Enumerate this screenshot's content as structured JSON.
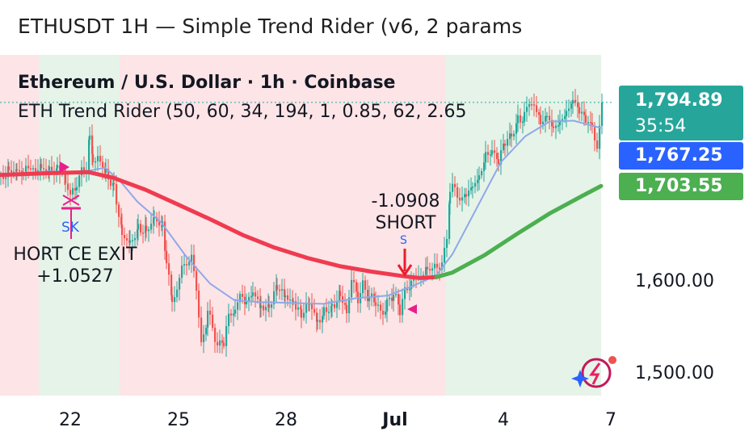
{
  "window_title": "ETHUSDT 1H — Simple Trend Rider (v6, 2 params",
  "legend": {
    "symbol_line": "Ethereum / U.S. Dollar · 1h · Coinbase",
    "indicator_line": "ETH Trend Rider (50, 60, 34, 194, 1, 0.85, 62, 2.65"
  },
  "price_tags": {
    "current_price": "1,794.89",
    "countdown": "35:54",
    "blue_line_value": "1,767.25",
    "green_line_value": "1,703.55"
  },
  "price_axis": [
    "1,600.00",
    "1,500.00"
  ],
  "date_axis": [
    "22",
    "25",
    "28",
    "Jul",
    "4",
    "7"
  ],
  "annotations": {
    "exit_label_1": "HORT CE EXIT",
    "exit_label_2": "+1.0527",
    "short_label_1": "-1.0908",
    "short_label_2": "SHORT",
    "sk_label": "SK",
    "s_label": "S"
  },
  "colors": {
    "bull_candle": "#26a69a",
    "bear_candle": "#ef5350",
    "background_bear": "#fde4e6",
    "background_bull": "#e6f3e8",
    "trend_line_bear": "#ef3b50",
    "trend_line_bull": "#4caf50",
    "fast_line": "#8fa8e8",
    "signal_magenta": "#e91e8c"
  },
  "chart_data": {
    "type": "candlestick",
    "title": "ETHUSDT 1H — Simple Trend Rider (v6, 2 params",
    "x": [
      "22",
      "25",
      "28",
      "Jul",
      "4",
      "7"
    ],
    "ylim": [
      1480,
      1860
    ],
    "y_ticks": [
      1500,
      1600
    ],
    "current_price": 1794.89,
    "overlay_values": {
      "fast_line_last": 1767.25,
      "trend_line_last": 1703.55
    },
    "series": [
      {
        "values": [
          [
            0,
            1714
          ],
          [
            10,
            1722
          ],
          [
            20,
            1716
          ],
          [
            28,
            1720
          ],
          [
            40,
            1724
          ],
          [
            50,
            1721
          ],
          [
            60,
            1718
          ],
          [
            70,
            1725
          ],
          [
            76,
            1722
          ],
          [
            80,
            1707
          ],
          [
            86,
            1693
          ],
          [
            94,
            1704
          ],
          [
            100,
            1720
          ],
          [
            106,
            1726
          ],
          [
            110,
            1760
          ],
          [
            114,
            1736
          ],
          [
            120,
            1733
          ],
          [
            130,
            1716
          ],
          [
            140,
            1706
          ],
          [
            150,
            1650
          ],
          [
            160,
            1638
          ],
          [
            170,
            1660
          ],
          [
            180,
            1656
          ],
          [
            190,
            1665
          ],
          [
            200,
            1660
          ],
          [
            205,
            1622
          ],
          [
            212,
            1575
          ],
          [
            218,
            1590
          ],
          [
            224,
            1623
          ],
          [
            230,
            1611
          ],
          [
            236,
            1634
          ],
          [
            242,
            1590
          ],
          [
            248,
            1530
          ],
          [
            256,
            1566
          ],
          [
            262,
            1553
          ],
          [
            268,
            1529
          ],
          [
            276,
            1535
          ],
          [
            282,
            1562
          ],
          [
            290,
            1566
          ],
          [
            296,
            1586
          ],
          [
            304,
            1578
          ],
          [
            312,
            1587
          ],
          [
            322,
            1572
          ],
          [
            332,
            1576
          ],
          [
            342,
            1593
          ],
          [
            352,
            1582
          ],
          [
            362,
            1581
          ],
          [
            372,
            1565
          ],
          [
            382,
            1574
          ],
          [
            392,
            1558
          ],
          [
            400,
            1566
          ],
          [
            410,
            1575
          ],
          [
            420,
            1585
          ],
          [
            428,
            1567
          ],
          [
            434,
            1603
          ],
          [
            442,
            1580
          ],
          [
            448,
            1595
          ],
          [
            456,
            1582
          ],
          [
            464,
            1578
          ],
          [
            470,
            1563
          ],
          [
            478,
            1575
          ],
          [
            486,
            1586
          ],
          [
            494,
            1570
          ],
          [
            500,
            1588
          ],
          [
            508,
            1597
          ],
          [
            514,
            1606
          ],
          [
            520,
            1608
          ],
          [
            528,
            1614
          ],
          [
            534,
            1617
          ],
          [
            540,
            1611
          ],
          [
            546,
            1625
          ],
          [
            552,
            1645
          ],
          [
            556,
            1696
          ],
          [
            562,
            1703
          ],
          [
            568,
            1689
          ],
          [
            576,
            1696
          ],
          [
            584,
            1706
          ],
          [
            592,
            1714
          ],
          [
            600,
            1736
          ],
          [
            608,
            1740
          ],
          [
            616,
            1731
          ],
          [
            624,
            1754
          ],
          [
            632,
            1760
          ],
          [
            640,
            1776
          ],
          [
            648,
            1778
          ],
          [
            654,
            1797
          ],
          [
            660,
            1792
          ],
          [
            668,
            1772
          ],
          [
            676,
            1782
          ],
          [
            684,
            1768
          ],
          [
            692,
            1774
          ],
          [
            700,
            1782
          ],
          [
            708,
            1796
          ],
          [
            716,
            1786
          ],
          [
            724,
            1778
          ],
          [
            732,
            1770
          ],
          [
            738,
            1745
          ],
          [
            744,
            1795
          ]
        ]
      },
      {
        "name": "fast",
        "values": [
          [
            0,
            1716
          ],
          [
            60,
            1720
          ],
          [
            100,
            1719
          ],
          [
            130,
            1724
          ],
          [
            150,
            1708
          ],
          [
            170,
            1687
          ],
          [
            200,
            1664
          ],
          [
            230,
            1628
          ],
          [
            260,
            1598
          ],
          [
            290,
            1580
          ],
          [
            320,
            1578
          ],
          [
            360,
            1577
          ],
          [
            400,
            1576
          ],
          [
            440,
            1582
          ],
          [
            480,
            1585
          ],
          [
            510,
            1595
          ],
          [
            540,
            1607
          ],
          [
            560,
            1630
          ],
          [
            590,
            1680
          ],
          [
            620,
            1730
          ],
          [
            650,
            1758
          ],
          [
            680,
            1774
          ],
          [
            710,
            1775
          ],
          [
            744,
            1767
          ]
        ]
      },
      {
        "name": "trend",
        "values": [
          [
            0,
            1716
          ],
          [
            60,
            1718
          ],
          [
            110,
            1719
          ],
          [
            140,
            1713
          ],
          [
            180,
            1700
          ],
          [
            220,
            1684
          ],
          [
            260,
            1668
          ],
          [
            300,
            1651
          ],
          [
            340,
            1637
          ],
          [
            380,
            1626
          ],
          [
            420,
            1617
          ],
          [
            460,
            1611
          ],
          [
            500,
            1606
          ],
          [
            520,
            1604
          ],
          [
            540,
            1605
          ],
          [
            560,
            1610
          ],
          [
            600,
            1629
          ],
          [
            640,
            1652
          ],
          [
            680,
            1674
          ],
          [
            720,
            1693
          ],
          [
            744,
            1704
          ]
        ]
      }
    ]
  }
}
